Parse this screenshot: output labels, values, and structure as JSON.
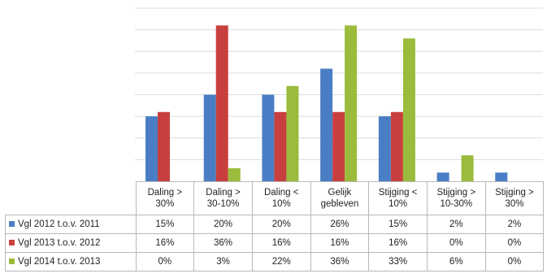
{
  "chart_data": {
    "type": "bar",
    "title": "",
    "xlabel": "",
    "ylabel": "",
    "ylim": [
      0,
      40
    ],
    "grid": true,
    "legend": "table-left",
    "categories": [
      "Daling > 30%",
      "Daling > 30-10%",
      "Daling < 10%",
      "Gelijk gebleven",
      "Stijging < 10%",
      "Stijging > 10-30%",
      "Stijging > 30%"
    ],
    "category_lines": [
      [
        "Daling >",
        "30%"
      ],
      [
        "Daling >",
        "30-10%"
      ],
      [
        "Daling <",
        "10%"
      ],
      [
        "Gelijk",
        "gebleven"
      ],
      [
        "Stijging <",
        "10%"
      ],
      [
        "Stijging >",
        "10-30%"
      ],
      [
        "Stijging >",
        "30%"
      ]
    ],
    "series": [
      {
        "name": "Vgl 2012 t.o.v. 2011",
        "color": "#4a7ec4",
        "values": [
          15,
          20,
          20,
          26,
          15,
          2,
          2
        ],
        "labels": [
          "15%",
          "20%",
          "20%",
          "26%",
          "15%",
          "2%",
          "2%"
        ]
      },
      {
        "name": "Vgl 2013 t.o.v. 2012",
        "color": "#c8403e",
        "values": [
          16,
          36,
          16,
          16,
          16,
          0,
          0
        ],
        "labels": [
          "16%",
          "36%",
          "16%",
          "16%",
          "16%",
          "0%",
          "0%"
        ]
      },
      {
        "name": "Vgl 2014 t.o.v. 2013",
        "color": "#9bbb3c",
        "values": [
          0,
          3,
          22,
          36,
          33,
          6,
          0
        ],
        "labels": [
          "0%",
          "3%",
          "22%",
          "36%",
          "33%",
          "6%",
          "0%"
        ]
      }
    ]
  }
}
